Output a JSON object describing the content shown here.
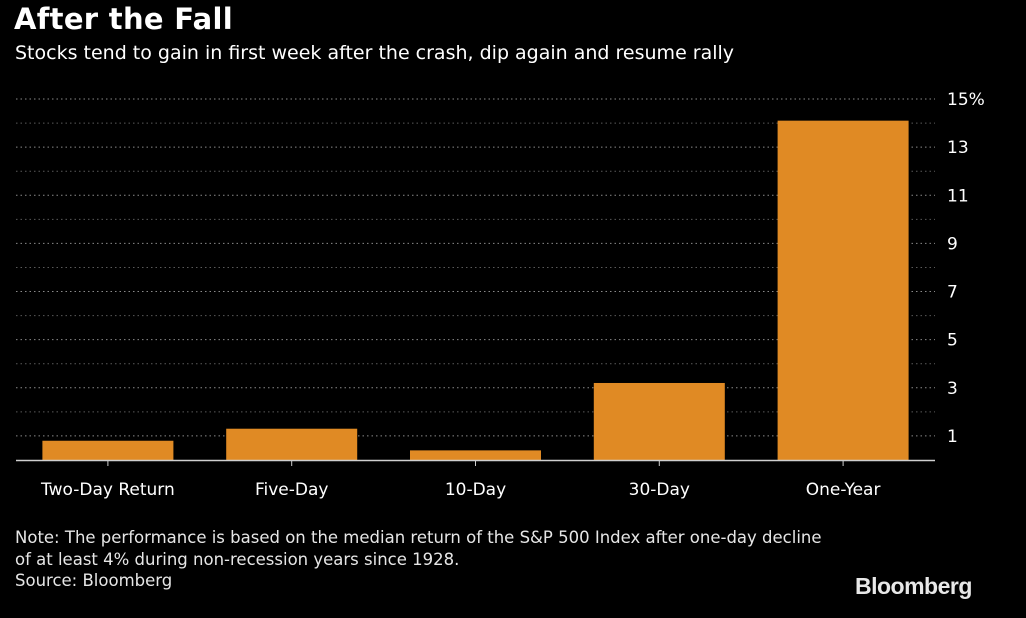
{
  "chart_data": {
    "type": "bar",
    "title": "After the Fall",
    "subtitle": "Stocks tend to gain in first week after the crash, dip again and resume rally",
    "categories": [
      "Two-Day Return",
      "Five-Day",
      "10-Day",
      "30-Day",
      "One-Year"
    ],
    "values": [
      0.8,
      1.3,
      0.4,
      3.2,
      14.1
    ],
    "ylim": [
      0,
      15
    ],
    "yticks": [
      1,
      3,
      5,
      7,
      9,
      11,
      13,
      15
    ],
    "ytick_labels": [
      "1",
      "3",
      "5",
      "7",
      "9",
      "11",
      "13",
      "15%"
    ],
    "y_axis_side": "right",
    "grid": true,
    "xlabel": "",
    "ylabel": "",
    "bar_color": "#e08a24"
  },
  "note": "Note: The performance is based on the median return of the S&P 500 Index after one-day decline of at least 4% during non-recession years since 1928.",
  "source": "Source: Bloomberg",
  "brand": "Bloomberg"
}
